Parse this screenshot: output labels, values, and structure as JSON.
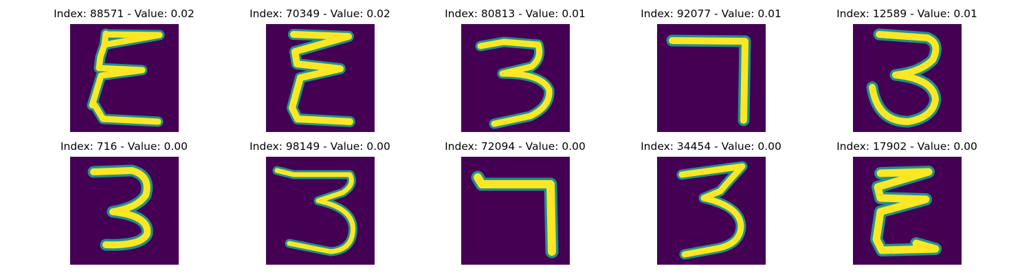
{
  "figure": {
    "panels": [
      {
        "title": "Index: 88571 - Value: 0.02",
        "glyph": "epsilon"
      },
      {
        "title": "Index: 70349 - Value: 0.02",
        "glyph": "epsilon"
      },
      {
        "title": "Index: 80813 - Value: 0.01",
        "glyph": "three"
      },
      {
        "title": "Index: 92077 - Value: 0.01",
        "glyph": "seven"
      },
      {
        "title": "Index: 12589 - Value: 0.01",
        "glyph": "three"
      },
      {
        "title": "Index: 716 - Value: 0.00",
        "glyph": "three"
      },
      {
        "title": "Index: 98149 - Value: 0.00",
        "glyph": "three"
      },
      {
        "title": "Index: 72094 - Value: 0.00",
        "glyph": "seven"
      },
      {
        "title": "Index: 34454 - Value: 0.00",
        "glyph": "three"
      },
      {
        "title": "Index: 17902 - Value: 0.00",
        "glyph": "epsilon"
      }
    ]
  },
  "colors": {
    "background": "#440154",
    "edge": "#21918c",
    "stroke": "#fde725"
  }
}
